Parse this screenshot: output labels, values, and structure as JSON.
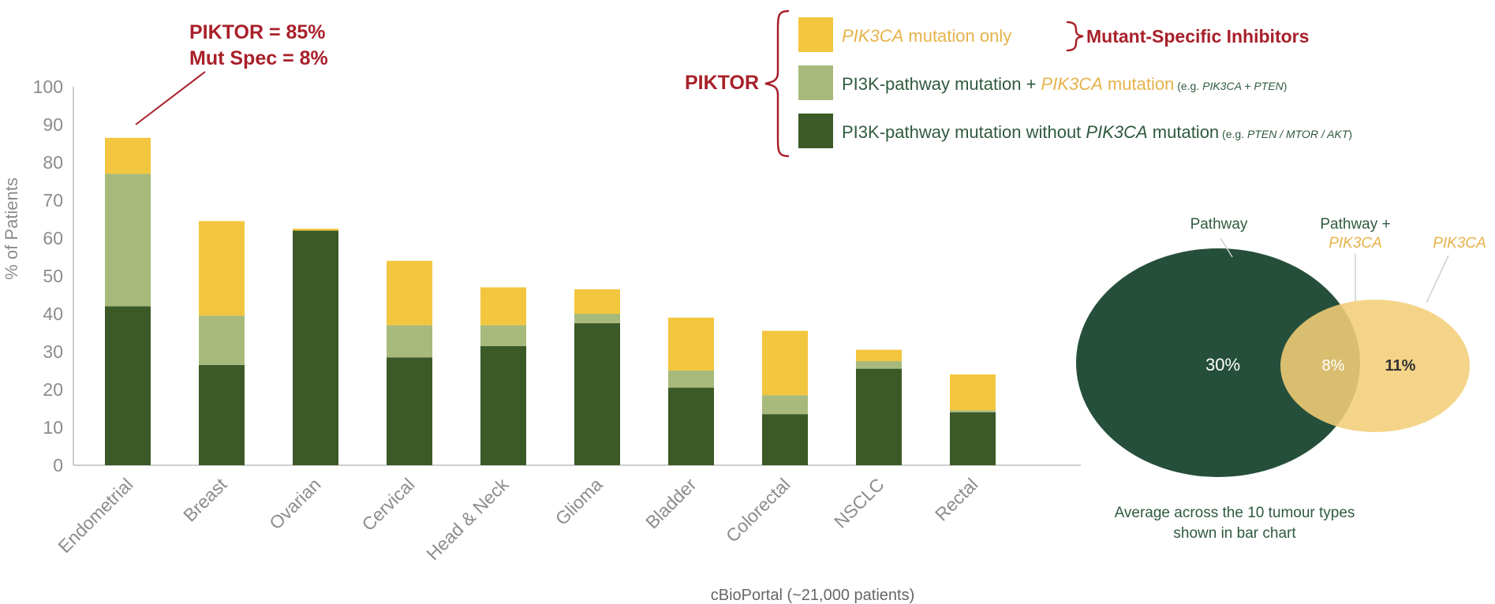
{
  "colors": {
    "pik3ca_only": "#F3C63F",
    "pathway_plus_pik3ca": "#A7BA7C",
    "pathway_only": "#3B5A27",
    "accent_red": "#A8202A",
    "axis_text": "#8C8C8C",
    "green_text": "#2F5A3E",
    "yellow_text": "#E6B24A",
    "venn_dark": "#254F3B",
    "venn_light": "#F2CE78"
  },
  "chart_data": {
    "type": "bar",
    "stacked": true,
    "ylabel": "% of Patients",
    "ylim": [
      0,
      100
    ],
    "yticks": [
      0,
      10,
      20,
      30,
      40,
      50,
      60,
      70,
      80,
      90,
      100
    ],
    "categories": [
      "Endometrial",
      "Breast",
      "Ovarian",
      "Cervical",
      "Head & Neck",
      "Glioma",
      "Bladder",
      "Colorectal",
      "NSCLC",
      "Rectal"
    ],
    "series": [
      {
        "key": "pathway_only",
        "values": [
          42,
          26.5,
          62,
          28.5,
          31.5,
          37.5,
          20.5,
          13.5,
          25.5,
          14
        ]
      },
      {
        "key": "pathway_plus_pik3ca",
        "values": [
          35,
          13,
          0,
          8.5,
          5.5,
          2.5,
          4.5,
          5,
          2,
          0.5
        ]
      },
      {
        "key": "pik3ca_only",
        "values": [
          9.5,
          25,
          0.5,
          17,
          10,
          6.5,
          14,
          17,
          3,
          9.5
        ]
      }
    ],
    "source": "cBioPortal (~21,000 patients)",
    "annotation": {
      "line1": "PIKTOR = 85%",
      "line2": "Mut Spec = 8%"
    }
  },
  "legend": {
    "group_label": "PIKTOR",
    "item1": {
      "italic": "PIK3CA",
      "rest": " mutation only"
    },
    "item1_arrow_label": "Mutant-Specific Inhibitors",
    "item2": {
      "a": "PI3K-pathway mutation",
      "b": " + ",
      "c": "PIK3CA",
      "d": " mutation",
      "eg_pre": " (e.g. ",
      "eg_it": "PIK3CA + PTEN",
      "eg_post": ")"
    },
    "item3": {
      "a": "PI3K-pathway mutation",
      "b": " without ",
      "c": "PIK3CA",
      "d": " mutation",
      "eg_pre": " (e.g. ",
      "eg_it": "PTEN / MTOR / AKT",
      "eg_post": ")"
    }
  },
  "venn": {
    "label_pathway": "Pathway",
    "label_both_1": "Pathway +",
    "label_both_2": "PIK3CA",
    "label_pik3ca": "PIK3CA",
    "value_pathway": "30%",
    "value_both": "8%",
    "value_pik3ca": "11%",
    "caption_1": "Average across the 10 tumour types",
    "caption_2": "shown in bar chart"
  }
}
